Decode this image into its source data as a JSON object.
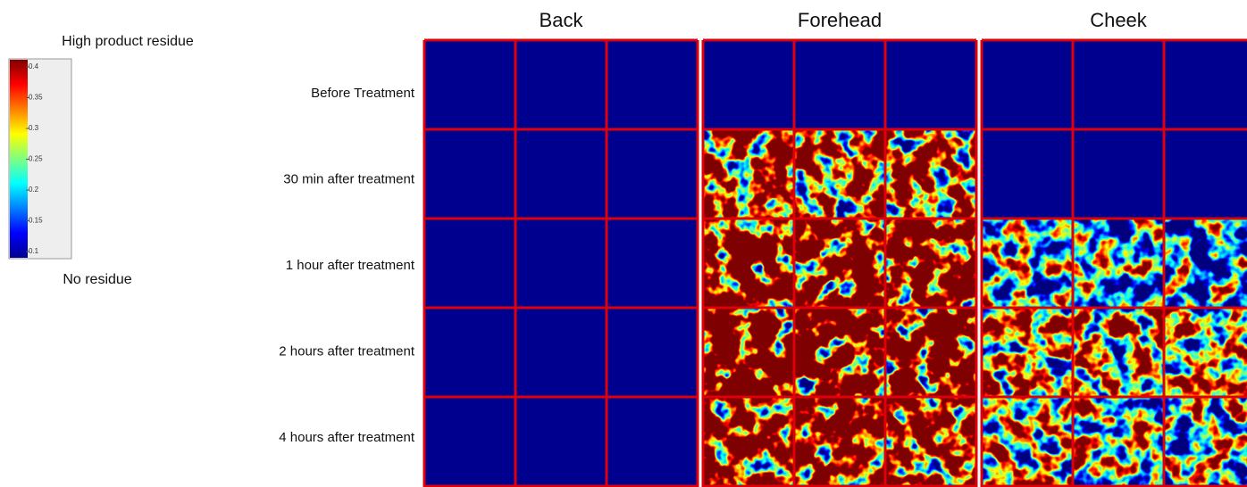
{
  "colorbar": {
    "title": "High product residue",
    "bottom_label": "No residue",
    "range": [
      0.09,
      0.4116
    ],
    "ticks": [
      0.1,
      0.15,
      0.2,
      0.25,
      0.3,
      0.35,
      0.4
    ]
  },
  "columns": [
    "Back",
    "Forehead",
    "Cheek"
  ],
  "rows": [
    "Before Treatment",
    "30 min after treatment",
    "1 hour after treatment",
    "2 hours after treatment",
    "4 hours after treatment"
  ]
}
